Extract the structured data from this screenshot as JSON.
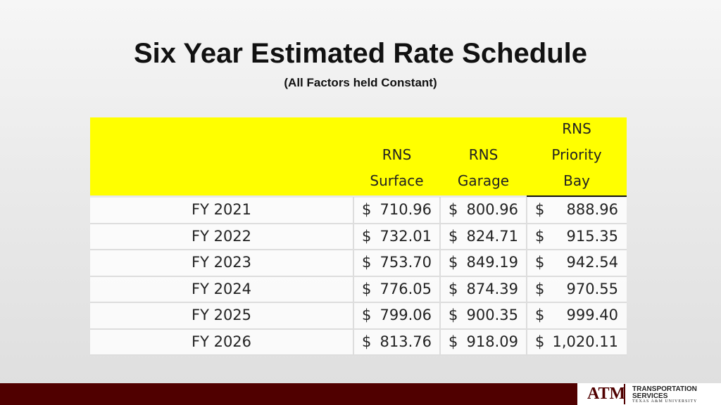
{
  "header": {
    "title": "Six Year Estimated Rate Schedule",
    "subtitle": "(All Factors held Constant)"
  },
  "table": {
    "columns": [
      [
        "RNS",
        "Surface"
      ],
      [
        "RNS",
        "Garage"
      ],
      [
        "RNS",
        "Priority",
        "Bay"
      ]
    ],
    "rows": [
      {
        "label": "FY 2021",
        "cells": [
          [
            "$",
            "710.96"
          ],
          [
            "$",
            "800.96"
          ],
          [
            "$",
            "888.96"
          ]
        ]
      },
      {
        "label": "FY 2022",
        "cells": [
          [
            "$",
            "732.01"
          ],
          [
            "$",
            "824.71"
          ],
          [
            "$",
            "915.35"
          ]
        ]
      },
      {
        "label": "FY 2023",
        "cells": [
          [
            "$",
            "753.70"
          ],
          [
            "$",
            "849.19"
          ],
          [
            "$",
            "942.54"
          ]
        ]
      },
      {
        "label": "FY 2024",
        "cells": [
          [
            "$",
            "776.05"
          ],
          [
            "$",
            "874.39"
          ],
          [
            "$",
            "970.55"
          ]
        ]
      },
      {
        "label": "FY 2025",
        "cells": [
          [
            "$",
            "799.06"
          ],
          [
            "$",
            "900.35"
          ],
          [
            "$",
            "999.40"
          ]
        ]
      },
      {
        "label": "FY 2026",
        "cells": [
          [
            "$",
            "813.76"
          ],
          [
            "$",
            "918.09"
          ],
          [
            "$",
            "1,020.11"
          ]
        ]
      }
    ]
  },
  "footer": {
    "logo": "ATM",
    "line1": "TRANSPORTATION",
    "line2": "SERVICES",
    "line3": "TEXAS A&M UNIVERSITY"
  }
}
